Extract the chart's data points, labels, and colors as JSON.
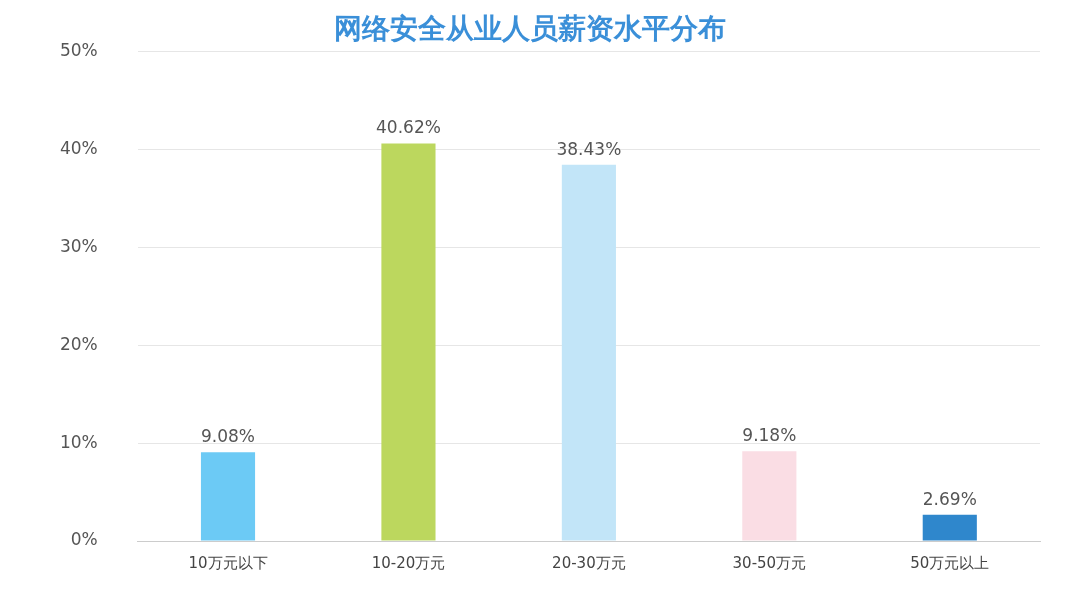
{
  "chart_data": {
    "type": "bar",
    "title": "网络安全从业人员薪资水平分布",
    "categories": [
      "10万元以下",
      "10-20万元",
      "20-30万元",
      "30-50万元",
      "50万元以上"
    ],
    "values": [
      9.08,
      40.62,
      38.43,
      9.18,
      2.69
    ],
    "colors": [
      "#6ccaf5",
      "#bcd75e",
      "#c2e5f8",
      "#fadde4",
      "#2f87cc"
    ],
    "value_labels": [
      "9.08%",
      "40.62%",
      "38.43%",
      "9.18%",
      "2.69%"
    ],
    "ylim": [
      0,
      50
    ],
    "yticks": [
      {
        "value": 0,
        "label": "0%"
      },
      {
        "value": 10,
        "label": "10%"
      },
      {
        "value": 20,
        "label": "20%"
      },
      {
        "value": 30,
        "label": "30%"
      },
      {
        "value": 40,
        "label": "40%"
      },
      {
        "value": 50,
        "label": "50%"
      }
    ],
    "grid": "y",
    "legend": false
  }
}
